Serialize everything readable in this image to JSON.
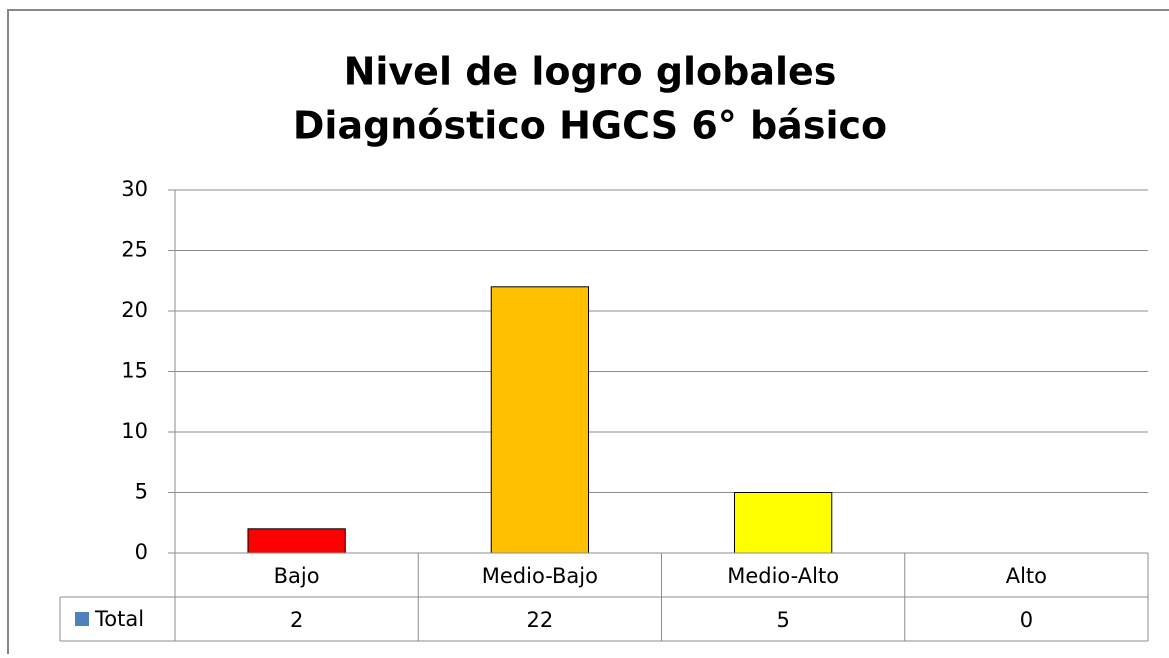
{
  "chart_data": {
    "type": "bar",
    "title": [
      "Nivel de logro globales",
      "Diagnóstico HGCS 6° básico"
    ],
    "categories": [
      "Bajo",
      "Medio-Bajo",
      "Medio-Alto",
      "Alto"
    ],
    "series": [
      {
        "name": "Total",
        "color": "#4f81bd",
        "values": [
          2,
          22,
          5,
          0
        ],
        "point_colors": [
          "#ff0000",
          "#ffc000",
          "#ffff00",
          "#4f81bd"
        ]
      }
    ],
    "ylim": [
      0,
      30
    ],
    "yticks": [
      0,
      5,
      10,
      15,
      20,
      25,
      30
    ],
    "grid": true,
    "data_table": true
  }
}
